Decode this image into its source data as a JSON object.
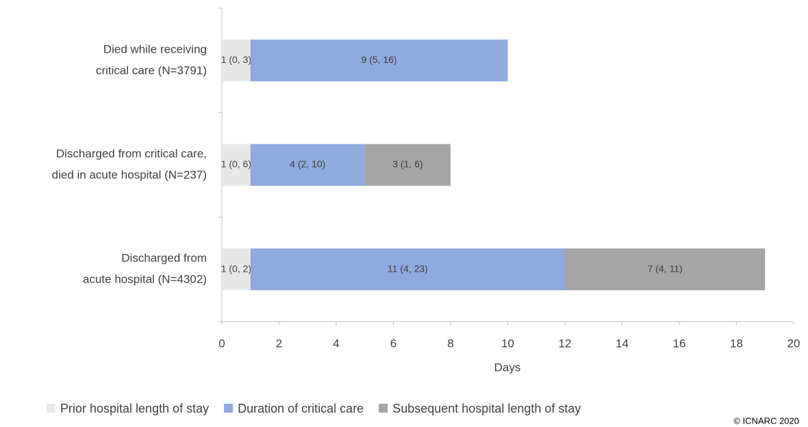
{
  "chart_data": {
    "type": "stacked-barh",
    "categories": [
      [
        "Died while receiving",
        "critical care (N=3791)"
      ],
      [
        "Discharged from critical care,",
        "died in acute hospital (N=237)"
      ],
      [
        "Discharged from",
        "acute hospital (N=4302)"
      ]
    ],
    "series": [
      {
        "name": "Prior hospital length of stay",
        "color": "#e7e7e7",
        "values": [
          1,
          1,
          1
        ],
        "value_labels": [
          "1 (0, 3)",
          "1 (0, 6)",
          "1 (0, 2)"
        ]
      },
      {
        "name": "Duration of critical care",
        "color": "#8faadc",
        "values": [
          9,
          4,
          11
        ],
        "value_labels": [
          "9 (5, 16)",
          "4 (2, 10)",
          "11 (4, 23)"
        ]
      },
      {
        "name": "Subsequent hospital length of stay",
        "color": "#a5a5a5",
        "values": [
          null,
          3,
          7
        ],
        "value_labels": [
          null,
          "3 (1, 6)",
          "7 (4, 11)"
        ]
      }
    ],
    "xlabel": "Days",
    "xlim": [
      0,
      20
    ],
    "xticks": [
      0,
      2,
      4,
      6,
      8,
      10,
      12,
      14,
      16,
      18,
      20
    ],
    "legend": "bottom",
    "copyright": "© ICNARC 2020"
  }
}
